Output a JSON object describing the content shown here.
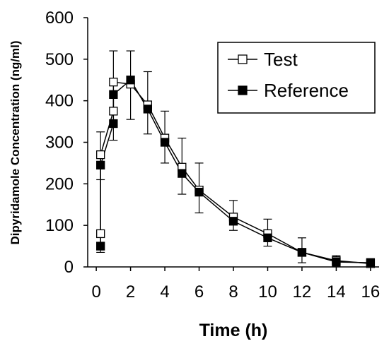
{
  "chart_data": {
    "type": "line",
    "title": "",
    "xlabel": "Time (h)",
    "ylabel": "Dipyridamole Concentration (ng/ml)",
    "xlim": [
      -0.5,
      16.5
    ],
    "ylim": [
      0,
      600
    ],
    "xticks": [
      "0",
      "2",
      "4",
      "6",
      "8",
      "10",
      "12",
      "14",
      "16"
    ],
    "yticks": [
      "0",
      "100",
      "200",
      "300",
      "400",
      "500",
      "600"
    ],
    "grid": false,
    "legend_position": "top-right",
    "series": [
      {
        "name": "Test",
        "marker": "open-square",
        "color": "#000000",
        "x": [
          0.25,
          0.25,
          1.0,
          1.0,
          2.0,
          3.0,
          4.0,
          5.0,
          6.0,
          8.0,
          10.0,
          12.0,
          14.0,
          16.0
        ],
        "y": [
          80,
          270,
          375,
          445,
          440,
          390,
          310,
          240,
          185,
          120,
          80,
          35,
          15,
          8
        ],
        "err_minus": [
          0,
          60,
          0,
          0,
          0,
          0,
          0,
          0,
          0,
          0,
          0,
          0,
          0,
          0
        ],
        "err_plus": [
          0,
          55,
          0,
          75,
          80,
          80,
          65,
          70,
          65,
          40,
          35,
          35,
          12,
          12
        ]
      },
      {
        "name": "Reference",
        "marker": "filled-square",
        "color": "#000000",
        "x": [
          0.25,
          0.25,
          1.0,
          1.0,
          2.0,
          3.0,
          4.0,
          5.0,
          6.0,
          8.0,
          10.0,
          12.0,
          14.0,
          16.0
        ],
        "y": [
          50,
          245,
          345,
          415,
          450,
          380,
          300,
          225,
          180,
          110,
          70,
          35,
          12,
          10
        ],
        "err_minus": [
          0,
          210,
          40,
          0,
          95,
          60,
          50,
          50,
          50,
          22,
          20,
          25,
          10,
          8
        ],
        "err_plus": [
          0,
          0,
          0,
          0,
          0,
          0,
          0,
          0,
          0,
          0,
          0,
          0,
          0,
          0
        ]
      }
    ]
  }
}
